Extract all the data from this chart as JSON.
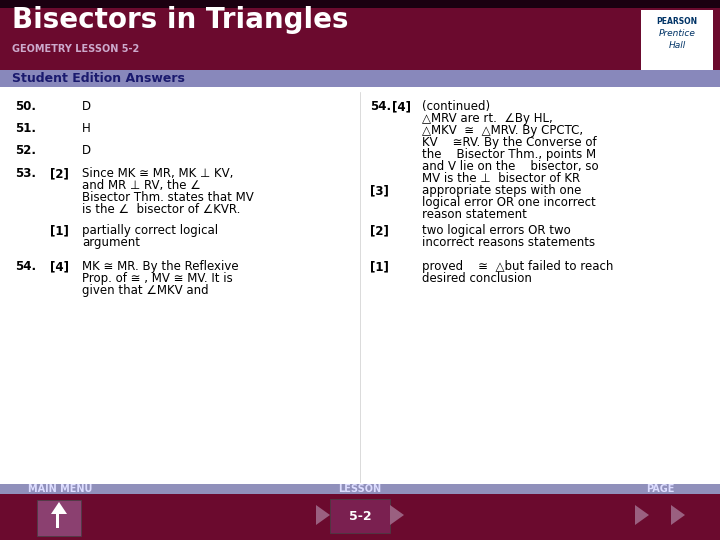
{
  "title": "Bisectors in Triangles",
  "subtitle": "GEOMETRY LESSON 5-2",
  "section_label": "Student Edition Answers",
  "bg_header": "#6b0a2e",
  "bg_section": "#8888bb",
  "bg_body": "#ffffff",
  "bg_footer": "#6b0a2e",
  "text_color_header": "#ffffff",
  "text_color_body": "#000000",
  "footer_lesson": "5-2"
}
